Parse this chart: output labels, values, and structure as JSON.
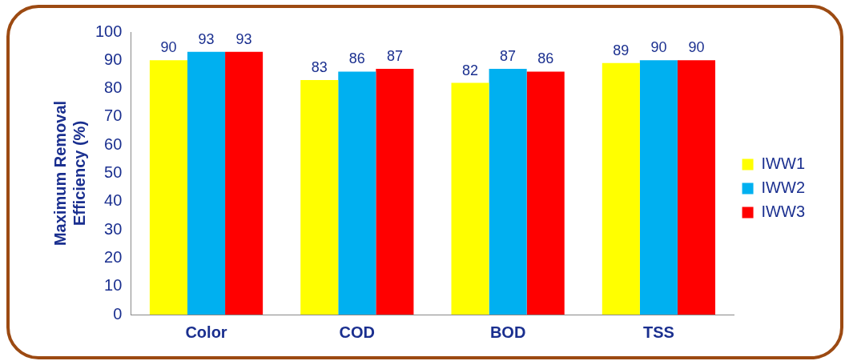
{
  "chart_data": {
    "type": "bar",
    "ylabel": "Maximum Removal Efficiency (%)",
    "categories": [
      "Color",
      "COD",
      "BOD",
      "TSS"
    ],
    "series": [
      {
        "name": "IWW1",
        "color": "#ffff00",
        "values": [
          90,
          83,
          82,
          89
        ]
      },
      {
        "name": "IWW2",
        "color": "#00b0f0",
        "values": [
          93,
          86,
          87,
          90
        ]
      },
      {
        "name": "IWW3",
        "color": "#ff0000",
        "values": [
          93,
          87,
          86,
          90
        ]
      }
    ],
    "ylim": [
      0,
      100
    ],
    "yticks": [
      0,
      10,
      20,
      30,
      40,
      50,
      60,
      70,
      80,
      90,
      100
    ],
    "grid": false,
    "legend": "right",
    "data_labels": true
  }
}
